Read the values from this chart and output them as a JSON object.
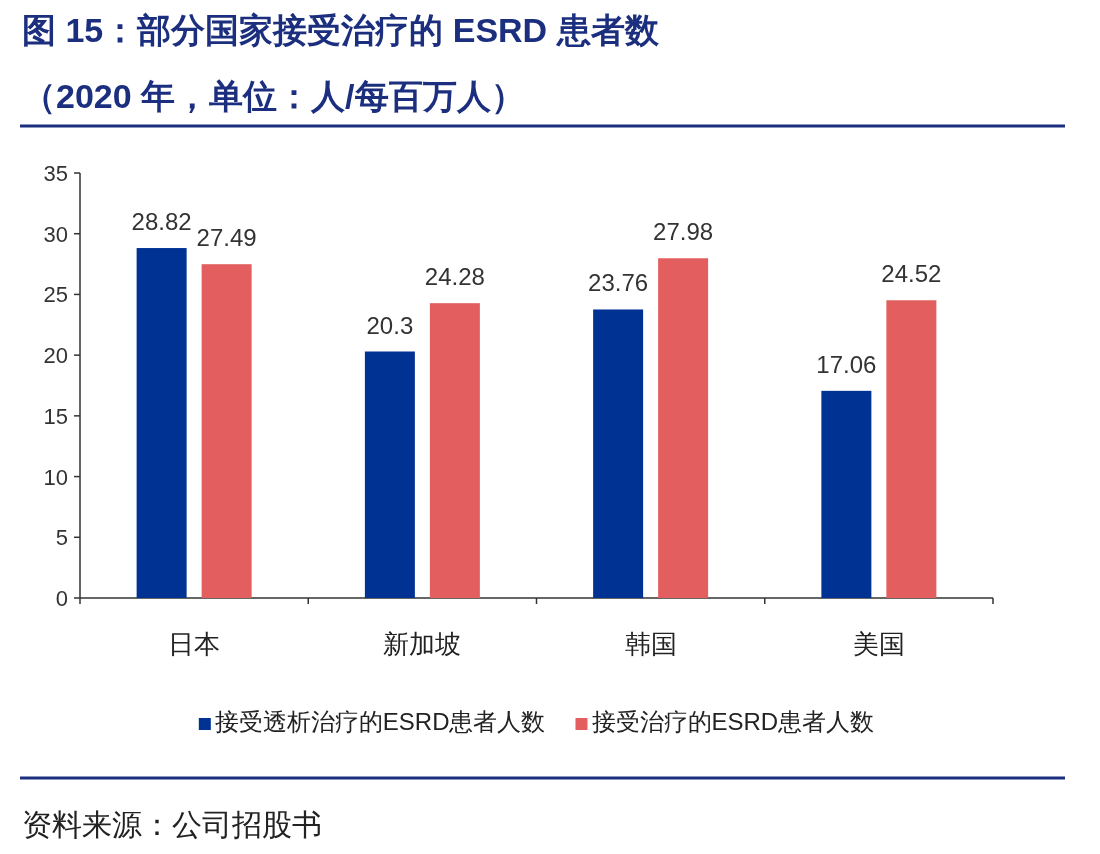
{
  "chart_data": {
    "type": "bar",
    "title": "图 15：部分国家接受治疗的 ESRD 患者数",
    "subtitle": "（2020 年，单位：人/每百万人）",
    "categories": [
      "日本",
      "新加坡",
      "韩国",
      "美国"
    ],
    "series": [
      {
        "name": "接受透析治疗的ESRD患者人数",
        "color": "#003293",
        "values": [
          28.82,
          20.3,
          23.76,
          17.06
        ]
      },
      {
        "name": "接受治疗的ESRD患者人数",
        "color": "#e35f5f",
        "values": [
          27.49,
          24.28,
          27.98,
          24.52
        ]
      }
    ],
    "ylim": [
      0,
      35
    ],
    "yticks": [
      0,
      5,
      10,
      15,
      20,
      25,
      30,
      35
    ],
    "data_labels": true,
    "grid": false,
    "legend": "bottom",
    "annotations": [
      "资料来源：公司招股书"
    ]
  }
}
